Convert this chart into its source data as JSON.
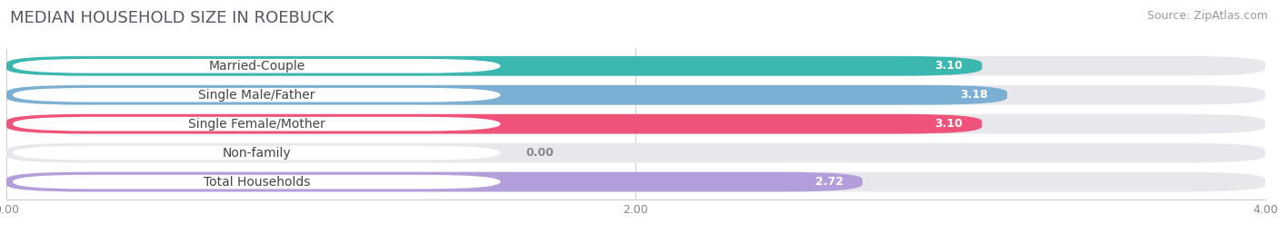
{
  "title": "MEDIAN HOUSEHOLD SIZE IN ROEBUCK",
  "source": "Source: ZipAtlas.com",
  "categories": [
    "Married-Couple",
    "Single Male/Father",
    "Single Female/Mother",
    "Non-family",
    "Total Households"
  ],
  "values": [
    3.1,
    3.18,
    3.1,
    0.0,
    2.72
  ],
  "bar_colors": [
    "#3ab8b0",
    "#7bafd4",
    "#f0537a",
    "#f5cfa0",
    "#b39ddb"
  ],
  "xlim_max": 4.0,
  "xticks": [
    0.0,
    2.0,
    4.0
  ],
  "xtick_labels": [
    "0.00",
    "2.00",
    "4.00"
  ],
  "title_fontsize": 13,
  "source_fontsize": 9,
  "label_fontsize": 10,
  "value_fontsize": 9,
  "background_color": "#ffffff",
  "bar_bg_color": "#e8e8ec"
}
